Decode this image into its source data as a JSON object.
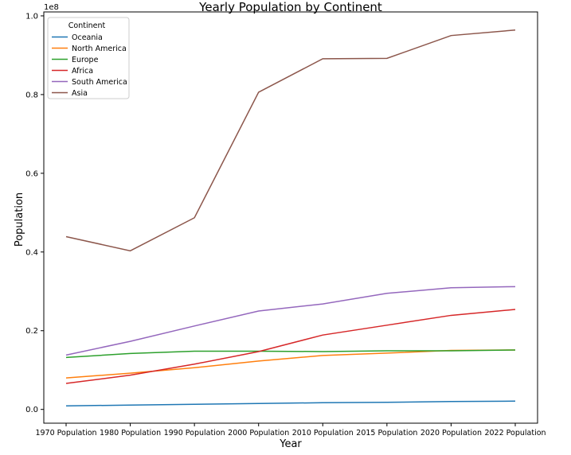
{
  "chart_data": {
    "type": "line",
    "title": "Yearly Population by Continent",
    "xlabel": "Year",
    "ylabel": "Population",
    "offset_label": "1e8",
    "categories": [
      "1970 Population",
      "1980 Population",
      "1990 Population",
      "2000 Population",
      "2010 Population",
      "2015 Population",
      "2020 Population",
      "2022 Population"
    ],
    "ylim": [
      -0.035,
      1.01
    ],
    "yticks": [
      0.0,
      0.2,
      0.4,
      0.6,
      0.8,
      1.0
    ],
    "ytick_labels": [
      "0.0",
      "0.2",
      "0.4",
      "0.6",
      "0.8",
      "1.0"
    ],
    "grid": false,
    "legend_title": "Continent",
    "legend_position": "top-left",
    "series": [
      {
        "name": "Oceania",
        "color": "#1f77b4",
        "values": [
          0.009,
          0.011,
          0.013,
          0.015,
          0.017,
          0.018,
          0.02,
          0.021
        ]
      },
      {
        "name": "North America",
        "color": "#ff7f0e",
        "values": [
          0.08,
          0.092,
          0.106,
          0.123,
          0.137,
          0.143,
          0.15,
          0.151
        ]
      },
      {
        "name": "Europe",
        "color": "#2ca02c",
        "values": [
          0.132,
          0.142,
          0.148,
          0.148,
          0.147,
          0.149,
          0.149,
          0.151
        ]
      },
      {
        "name": "Africa",
        "color": "#d62728",
        "values": [
          0.066,
          0.087,
          0.115,
          0.147,
          0.189,
          0.214,
          0.239,
          0.254
        ]
      },
      {
        "name": "South America",
        "color": "#9467bd",
        "values": [
          0.138,
          0.173,
          0.212,
          0.25,
          0.268,
          0.295,
          0.309,
          0.312
        ]
      },
      {
        "name": "Asia",
        "color": "#8c564b",
        "values": [
          0.439,
          0.403,
          0.487,
          0.806,
          0.891,
          0.892,
          0.95,
          0.964
        ]
      }
    ]
  }
}
